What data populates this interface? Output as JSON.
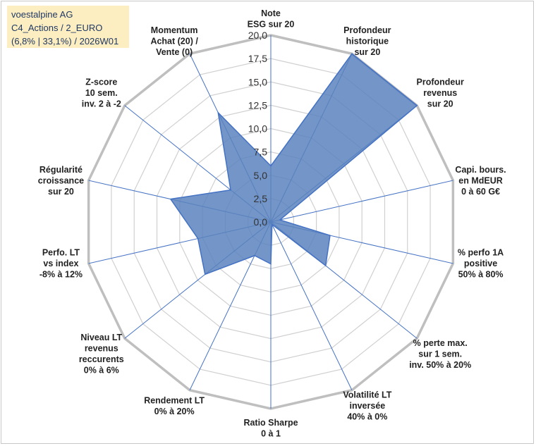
{
  "title": {
    "line1": "voestalpine AG",
    "line2": "C4_Actions / 2_EURO",
    "line3": "(6,8% | 33,1%) / 2026W01"
  },
  "chart_data": {
    "type": "radar",
    "rmin": 0,
    "rmax": 20,
    "tick_step": 2.5,
    "tick_labels": [
      "0,0",
      "2,5",
      "5,0",
      "7,5",
      "10,0",
      "12,5",
      "15,0",
      "17,5",
      "20,0"
    ],
    "axes": [
      {
        "label": [
          "Note",
          "ESG sur 20"
        ],
        "value": 6
      },
      {
        "label": [
          "Profondeur",
          "historique",
          "sur 20"
        ],
        "value": 20
      },
      {
        "label": [
          "Profondeur",
          "revenus",
          "sur 20"
        ],
        "value": 20
      },
      {
        "label": [
          "Capi. bours.",
          "en MdEUR",
          "0 à 60 G€"
        ],
        "value": 1
      },
      {
        "label": [
          "% perfo 1A",
          "positive",
          "50% à 80%"
        ],
        "value": 6.5
      },
      {
        "label": [
          "% perte max.",
          "sur 1 sem.",
          "inv. 50% à 20%"
        ],
        "value": 7.5
      },
      {
        "label": [
          "Volatilité LT",
          "inversée",
          "40% à 0%"
        ],
        "value": 0.3
      },
      {
        "label": [
          "Ratio Sharpe",
          "0 à 1"
        ],
        "value": 4.5
      },
      {
        "label": [
          "Rendement LT",
          "0% à 20%"
        ],
        "value": 4
      },
      {
        "label": [
          "Niveau LT",
          "revenus",
          "reccurents",
          "0% à 6%"
        ],
        "value": 9
      },
      {
        "label": [
          "Perfo. LT",
          "vs index",
          "-8% à 12%"
        ],
        "value": 8
      },
      {
        "label": [
          "Régularité",
          "croissance",
          "sur 20"
        ],
        "value": 11
      },
      {
        "label": [
          "Z-score",
          "10 sem.",
          "inv. 2 à -2"
        ],
        "value": 5.5
      },
      {
        "label": [
          "Momentum",
          "Achat (20) /",
          "Vente (0)"
        ],
        "value": 13
      }
    ],
    "colors": {
      "fill": "#5b83bd",
      "stroke": "#4472c4",
      "axis": "#4472c4",
      "grid": "#d0d0d0",
      "outer_ring": "#bfbfbf"
    }
  }
}
